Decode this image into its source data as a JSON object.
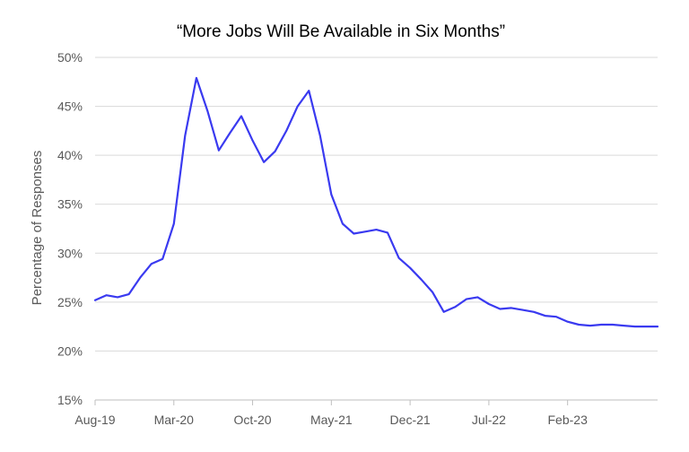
{
  "chart_data": {
    "type": "line",
    "title": "“More Jobs Will Be Available in Six Months”",
    "xlabel": "",
    "ylabel": "Percentage of Responses",
    "ylim": [
      15,
      50
    ],
    "yticks": [
      15,
      20,
      25,
      30,
      35,
      40,
      45,
      50
    ],
    "ytick_labels": [
      "15%",
      "20%",
      "25%",
      "30%",
      "35%",
      "40%",
      "45%",
      "50%"
    ],
    "xlim": [
      "2019-08",
      "2023-10"
    ],
    "xticks": [
      "2019-08",
      "2020-03",
      "2020-10",
      "2021-05",
      "2021-12",
      "2022-07",
      "2023-02"
    ],
    "xtick_labels": [
      "Aug-19",
      "Mar-20",
      "Oct-20",
      "May-21",
      "Dec-21",
      "Jul-22",
      "Feb-23"
    ],
    "grid": true,
    "line_color": "#3a3af0",
    "series": [
      {
        "x": [
          "2019-08",
          "2019-09",
          "2019-10",
          "2019-11",
          "2019-12",
          "2020-01",
          "2020-02",
          "2020-03",
          "2020-04",
          "2020-05",
          "2020-06",
          "2020-07",
          "2020-08",
          "2020-09",
          "2020-10",
          "2020-11",
          "2020-12",
          "2021-01",
          "2021-02",
          "2021-03",
          "2021-04",
          "2021-05",
          "2021-06",
          "2021-07",
          "2021-08",
          "2021-09",
          "2021-10",
          "2021-11",
          "2021-12",
          "2022-01",
          "2022-02",
          "2022-03",
          "2022-04",
          "2022-05",
          "2022-06",
          "2022-07",
          "2022-08",
          "2022-09",
          "2022-10",
          "2022-11",
          "2022-12",
          "2023-01",
          "2023-02",
          "2023-03",
          "2023-04",
          "2023-05",
          "2023-06",
          "2023-07",
          "2023-08",
          "2023-09",
          "2023-10"
        ],
        "values": [
          25.2,
          25.7,
          25.5,
          25.8,
          27.5,
          28.9,
          29.4,
          33.0,
          42.0,
          47.9,
          44.5,
          40.5,
          42.3,
          44.0,
          41.5,
          39.3,
          40.4,
          42.5,
          45.0,
          46.6,
          42.0,
          36.0,
          33.0,
          32.0,
          32.2,
          32.4,
          32.1,
          29.5,
          28.5,
          27.3,
          26.0,
          24.0,
          24.5,
          25.3,
          25.5,
          24.8,
          24.3,
          24.4,
          24.2,
          24.0,
          23.6,
          23.5,
          23.0,
          22.7,
          22.6,
          22.7,
          22.7,
          22.6,
          22.5,
          22.5,
          22.5
        ]
      }
    ]
  }
}
